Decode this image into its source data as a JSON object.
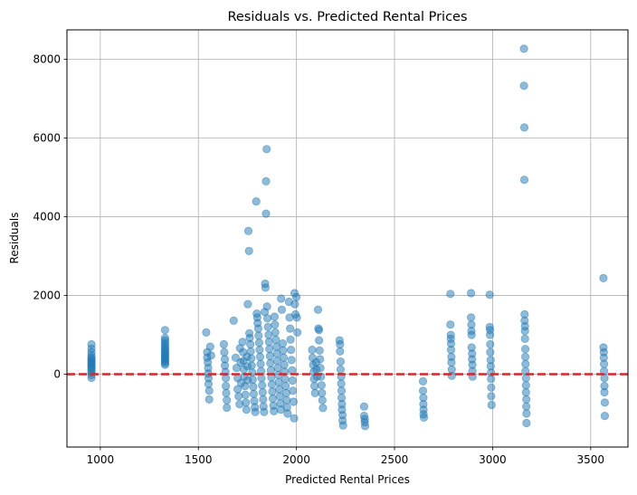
{
  "chart_data": {
    "type": "scatter",
    "title": "Residuals vs. Predicted Rental Prices",
    "xlabel": "Predicted Rental Prices",
    "ylabel": "Residuals",
    "xlim": [
      830,
      3690
    ],
    "ylim": [
      -1850,
      8750
    ],
    "x_ticks": [
      1000,
      1500,
      2000,
      2500,
      3000,
      3500
    ],
    "y_ticks": [
      0,
      2000,
      4000,
      6000,
      8000
    ],
    "grid": true,
    "reference_line": {
      "y": 0,
      "color": "#d62728",
      "style": "dashed"
    },
    "point_color": "#1f77b4",
    "point_alpha": 0.5,
    "points": [
      [
        955,
        760
      ],
      [
        955,
        650
      ],
      [
        955,
        560
      ],
      [
        955,
        480
      ],
      [
        955,
        420
      ],
      [
        955,
        380
      ],
      [
        955,
        340
      ],
      [
        955,
        300
      ],
      [
        955,
        260
      ],
      [
        955,
        220
      ],
      [
        955,
        180
      ],
      [
        955,
        140
      ],
      [
        955,
        90
      ],
      [
        955,
        40
      ],
      [
        955,
        -20
      ],
      [
        955,
        -90
      ],
      [
        1330,
        1120
      ],
      [
        1330,
        920
      ],
      [
        1330,
        860
      ],
      [
        1330,
        800
      ],
      [
        1330,
        750
      ],
      [
        1330,
        700
      ],
      [
        1330,
        650
      ],
      [
        1330,
        600
      ],
      [
        1330,
        560
      ],
      [
        1330,
        520
      ],
      [
        1330,
        480
      ],
      [
        1330,
        440
      ],
      [
        1330,
        400
      ],
      [
        1330,
        360
      ],
      [
        1330,
        320
      ],
      [
        1330,
        280
      ],
      [
        1330,
        240
      ],
      [
        1540,
        1060
      ],
      [
        1545,
        560
      ],
      [
        1545,
        420
      ],
      [
        1548,
        300
      ],
      [
        1550,
        160
      ],
      [
        1550,
        20
      ],
      [
        1552,
        -100
      ],
      [
        1552,
        -250
      ],
      [
        1555,
        -420
      ],
      [
        1555,
        -640
      ],
      [
        1560,
        700
      ],
      [
        1565,
        480
      ],
      [
        1630,
        760
      ],
      [
        1632,
        560
      ],
      [
        1635,
        380
      ],
      [
        1635,
        220
      ],
      [
        1638,
        60
      ],
      [
        1640,
        -100
      ],
      [
        1640,
        -300
      ],
      [
        1642,
        -480
      ],
      [
        1645,
        -660
      ],
      [
        1645,
        -850
      ],
      [
        1680,
        1360
      ],
      [
        1690,
        420
      ],
      [
        1695,
        160
      ],
      [
        1700,
        -100
      ],
      [
        1700,
        -380
      ],
      [
        1705,
        -560
      ],
      [
        1710,
        -760
      ],
      [
        1712,
        660
      ],
      [
        1715,
        300
      ],
      [
        1718,
        -220
      ],
      [
        1725,
        820
      ],
      [
        1728,
        560
      ],
      [
        1730,
        340
      ],
      [
        1732,
        120
      ],
      [
        1735,
        -60
      ],
      [
        1738,
        -300
      ],
      [
        1740,
        -520
      ],
      [
        1742,
        -720
      ],
      [
        1745,
        -900
      ],
      [
        1748,
        440
      ],
      [
        1750,
        200
      ],
      [
        1752,
        -150
      ],
      [
        1752,
        1780
      ],
      [
        1755,
        3640
      ],
      [
        1758,
        3130
      ],
      [
        1760,
        1040
      ],
      [
        1762,
        920
      ],
      [
        1765,
        760
      ],
      [
        1767,
        580
      ],
      [
        1770,
        400
      ],
      [
        1772,
        220
      ],
      [
        1775,
        40
      ],
      [
        1777,
        -140
      ],
      [
        1780,
        -320
      ],
      [
        1782,
        -500
      ],
      [
        1785,
        -680
      ],
      [
        1788,
        -840
      ],
      [
        1790,
        -960
      ],
      [
        1795,
        4390
      ],
      [
        1798,
        1540
      ],
      [
        1800,
        1440
      ],
      [
        1802,
        1300
      ],
      [
        1805,
        1160
      ],
      [
        1807,
        980
      ],
      [
        1810,
        800
      ],
      [
        1812,
        620
      ],
      [
        1815,
        440
      ],
      [
        1817,
        260
      ],
      [
        1820,
        80
      ],
      [
        1822,
        -100
      ],
      [
        1825,
        -280
      ],
      [
        1828,
        -460
      ],
      [
        1830,
        -640
      ],
      [
        1832,
        -820
      ],
      [
        1835,
        -960
      ],
      [
        1838,
        1580
      ],
      [
        1840,
        2300
      ],
      [
        1842,
        2200
      ],
      [
        1845,
        4080
      ],
      [
        1845,
        4900
      ],
      [
        1848,
        5720
      ],
      [
        1850,
        1720
      ],
      [
        1852,
        1420
      ],
      [
        1855,
        1200
      ],
      [
        1858,
        1000
      ],
      [
        1860,
        820
      ],
      [
        1862,
        640
      ],
      [
        1865,
        460
      ],
      [
        1867,
        280
      ],
      [
        1870,
        100
      ],
      [
        1872,
        -80
      ],
      [
        1875,
        -260
      ],
      [
        1877,
        -440
      ],
      [
        1880,
        -620
      ],
      [
        1882,
        -800
      ],
      [
        1885,
        -940
      ],
      [
        1888,
        1460
      ],
      [
        1890,
        1260
      ],
      [
        1892,
        1060
      ],
      [
        1895,
        880
      ],
      [
        1898,
        700
      ],
      [
        1900,
        520
      ],
      [
        1902,
        340
      ],
      [
        1905,
        160
      ],
      [
        1908,
        -20
      ],
      [
        1910,
        -200
      ],
      [
        1912,
        -380
      ],
      [
        1915,
        -560
      ],
      [
        1918,
        -740
      ],
      [
        1920,
        -900
      ],
      [
        1922,
        1920
      ],
      [
        1925,
        1640
      ],
      [
        1930,
        780
      ],
      [
        1932,
        600
      ],
      [
        1935,
        420
      ],
      [
        1938,
        240
      ],
      [
        1940,
        60
      ],
      [
        1942,
        -120
      ],
      [
        1945,
        -300
      ],
      [
        1948,
        -480
      ],
      [
        1950,
        -660
      ],
      [
        1952,
        -840
      ],
      [
        1955,
        -1000
      ],
      [
        1962,
        1840
      ],
      [
        1965,
        1440
      ],
      [
        1968,
        1160
      ],
      [
        1970,
        880
      ],
      [
        1972,
        620
      ],
      [
        1975,
        360
      ],
      [
        1978,
        100
      ],
      [
        1980,
        -160
      ],
      [
        1982,
        -420
      ],
      [
        1985,
        -700
      ],
      [
        1988,
        -1120
      ],
      [
        1990,
        2060
      ],
      [
        1992,
        1780
      ],
      [
        1995,
        1520
      ],
      [
        2000,
        1960
      ],
      [
        2002,
        1440
      ],
      [
        2005,
        1060
      ],
      [
        2080,
        620
      ],
      [
        2082,
        420
      ],
      [
        2085,
        240
      ],
      [
        2088,
        60
      ],
      [
        2090,
        -120
      ],
      [
        2092,
        -300
      ],
      [
        2095,
        -480
      ],
      [
        2100,
        300
      ],
      [
        2102,
        120
      ],
      [
        2105,
        -60
      ],
      [
        2110,
        1640
      ],
      [
        2112,
        1160
      ],
      [
        2115,
        1120
      ],
      [
        2115,
        860
      ],
      [
        2118,
        600
      ],
      [
        2120,
        380
      ],
      [
        2122,
        160
      ],
      [
        2125,
        -60
      ],
      [
        2128,
        -280
      ],
      [
        2130,
        -480
      ],
      [
        2132,
        -660
      ],
      [
        2135,
        -860
      ],
      [
        2220,
        860
      ],
      [
        2222,
        760
      ],
      [
        2222,
        580
      ],
      [
        2225,
        320
      ],
      [
        2225,
        120
      ],
      [
        2228,
        -60
      ],
      [
        2228,
        -240
      ],
      [
        2230,
        -420
      ],
      [
        2230,
        -600
      ],
      [
        2232,
        -760
      ],
      [
        2232,
        -900
      ],
      [
        2235,
        -1040
      ],
      [
        2235,
        -1180
      ],
      [
        2238,
        -1300
      ],
      [
        2345,
        -820
      ],
      [
        2345,
        -1060
      ],
      [
        2348,
        -1140
      ],
      [
        2348,
        -1220
      ],
      [
        2350,
        -1320
      ],
      [
        2645,
        -180
      ],
      [
        2645,
        -420
      ],
      [
        2647,
        -600
      ],
      [
        2647,
        -760
      ],
      [
        2648,
        -900
      ],
      [
        2648,
        -1020
      ],
      [
        2650,
        -1100
      ],
      [
        2785,
        2040
      ],
      [
        2785,
        1260
      ],
      [
        2787,
        1000
      ],
      [
        2787,
        900
      ],
      [
        2788,
        780
      ],
      [
        2788,
        620
      ],
      [
        2790,
        440
      ],
      [
        2790,
        300
      ],
      [
        2792,
        120
      ],
      [
        2792,
        -40
      ],
      [
        2890,
        2060
      ],
      [
        2890,
        1440
      ],
      [
        2892,
        1260
      ],
      [
        2892,
        1100
      ],
      [
        2893,
        1000
      ],
      [
        2893,
        680
      ],
      [
        2895,
        520
      ],
      [
        2895,
        380
      ],
      [
        2897,
        240
      ],
      [
        2897,
        80
      ],
      [
        2898,
        -60
      ],
      [
        2985,
        2020
      ],
      [
        2985,
        1200
      ],
      [
        2987,
        1120
      ],
      [
        2987,
        1000
      ],
      [
        2988,
        760
      ],
      [
        2988,
        560
      ],
      [
        2990,
        360
      ],
      [
        2990,
        200
      ],
      [
        2992,
        40
      ],
      [
        2992,
        -120
      ],
      [
        2993,
        -340
      ],
      [
        2993,
        -560
      ],
      [
        2995,
        -780
      ],
      [
        3160,
        8270
      ],
      [
        3160,
        7330
      ],
      [
        3162,
        6270
      ],
      [
        3162,
        4940
      ],
      [
        3163,
        1520
      ],
      [
        3163,
        1360
      ],
      [
        3165,
        1220
      ],
      [
        3165,
        1100
      ],
      [
        3165,
        900
      ],
      [
        3167,
        640
      ],
      [
        3167,
        440
      ],
      [
        3168,
        260
      ],
      [
        3168,
        80
      ],
      [
        3170,
        -100
      ],
      [
        3170,
        -280
      ],
      [
        3170,
        -460
      ],
      [
        3172,
        -640
      ],
      [
        3172,
        -820
      ],
      [
        3173,
        -1000
      ],
      [
        3173,
        -1240
      ],
      [
        3565,
        2440
      ],
      [
        3565,
        680
      ],
      [
        3567,
        560
      ],
      [
        3567,
        420
      ],
      [
        3568,
        260
      ],
      [
        3568,
        80
      ],
      [
        3570,
        -100
      ],
      [
        3570,
        -300
      ],
      [
        3570,
        -460
      ],
      [
        3572,
        -720
      ],
      [
        3572,
        -1060
      ]
    ]
  }
}
